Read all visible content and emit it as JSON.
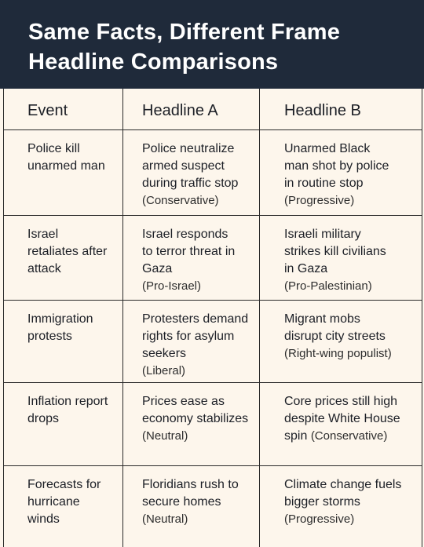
{
  "header": {
    "title_line1": "Same Facts, Different Frame",
    "title_line2": "Headline Comparisons"
  },
  "columns": [
    "Event",
    "Headline A",
    "Headline B"
  ],
  "rows": [
    {
      "event": [
        "Police kill",
        "unarmed man"
      ],
      "a_lines": [
        "Police neutralize",
        "armed suspect",
        "during traffic stop"
      ],
      "a_tag": "(Conservative)",
      "b_lines": [
        "Unarmed Black",
        "man shot by police",
        "in routine stop"
      ],
      "b_tag": "(Progressive)"
    },
    {
      "event": [
        "Israel",
        "retaliates after",
        "attack"
      ],
      "a_lines": [
        "Israel responds",
        "to terror threat in",
        "Gaza"
      ],
      "a_tag": "(Pro-Israel)",
      "b_lines": [
        "Israeli military",
        "strikes kill civilians",
        "in Gaza"
      ],
      "b_tag": "(Pro-Palestinian)"
    },
    {
      "event": [
        "Immigration",
        "protests"
      ],
      "a_lines": [
        "Protesters demand",
        "rights for asylum",
        "seekers"
      ],
      "a_tag": "(Liberal)",
      "b_lines": [
        "Migrant mobs",
        "disrupt city streets"
      ],
      "b_tag": "(Right-wing populist)"
    },
    {
      "event": [
        "Inflation report",
        "drops"
      ],
      "a_lines": [
        "Prices ease as",
        "economy stabilizes"
      ],
      "a_tag": "(Neutral)",
      "b_lines": [
        "Core prices still high",
        "despite White House",
        "spin"
      ],
      "b_tag": "(Conservative)",
      "b_tag_inline": true
    },
    {
      "event": [
        "Forecasts for",
        "hurricane",
        "winds"
      ],
      "a_lines": [
        "Floridians rush to",
        "secure homes"
      ],
      "a_tag": "(Neutral)",
      "b_lines": [
        "Climate change fuels",
        "bigger storms"
      ],
      "b_tag": "(Progressive)"
    }
  ]
}
